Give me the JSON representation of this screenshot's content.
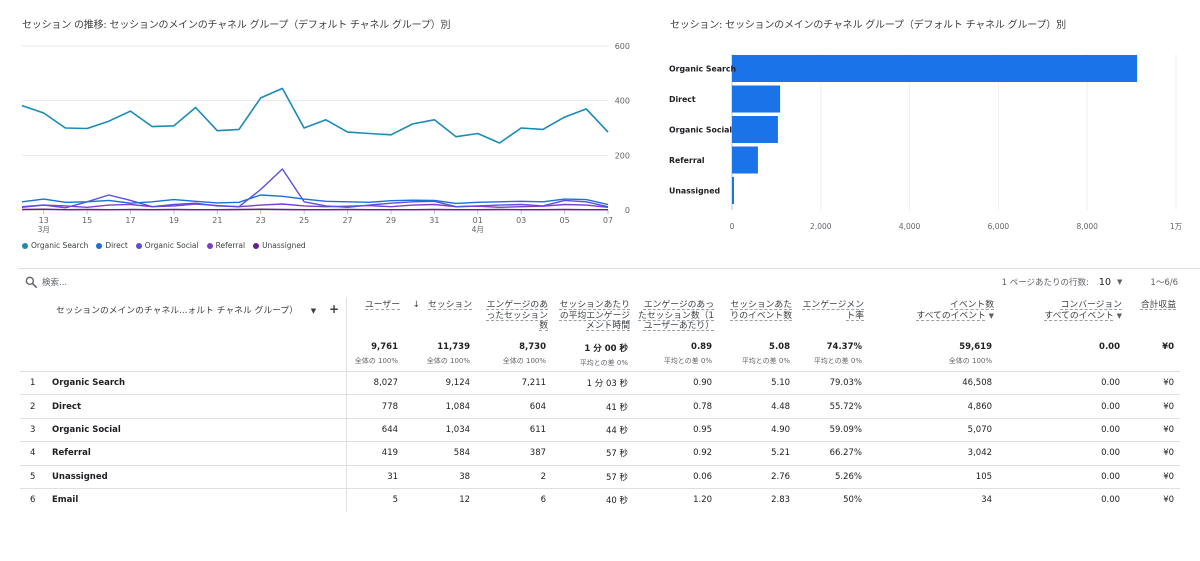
{
  "line_chart": {
    "title": "セッション の推移: セッションのメインのチャネル グループ（デフォルト チャネル グループ）別",
    "y_ticks": [
      "600",
      "400",
      "200",
      "0"
    ],
    "x_ticks": [
      {
        "label": "13",
        "sub": "3月"
      },
      {
        "label": "15",
        "sub": ""
      },
      {
        "label": "17",
        "sub": ""
      },
      {
        "label": "19",
        "sub": ""
      },
      {
        "label": "21",
        "sub": ""
      },
      {
        "label": "23",
        "sub": ""
      },
      {
        "label": "25",
        "sub": ""
      },
      {
        "label": "27",
        "sub": ""
      },
      {
        "label": "29",
        "sub": ""
      },
      {
        "label": "31",
        "sub": ""
      },
      {
        "label": "01",
        "sub": "4月"
      },
      {
        "label": "03",
        "sub": ""
      },
      {
        "label": "05",
        "sub": ""
      },
      {
        "label": "07",
        "sub": ""
      }
    ],
    "legend": [
      {
        "label": "Organic Search",
        "color": "#1a8ab8"
      },
      {
        "label": "Direct",
        "color": "#1c6fd8"
      },
      {
        "label": "Organic Social",
        "color": "#5b4fe0"
      },
      {
        "label": "Referral",
        "color": "#7e3fc8"
      },
      {
        "label": "Unassigned",
        "color": "#6a1b9a"
      }
    ]
  },
  "bar_chart": {
    "title": "セッション: セッションのメインのチャネル グループ（デフォルト チャネル グループ）別",
    "x_ticks": [
      "0",
      "2,000",
      "4,000",
      "6,000",
      "8,000",
      "1万"
    ],
    "color": "#1a73e8"
  },
  "chart_data": [
    {
      "type": "line",
      "title": "セッション の推移: セッションのメインのチャネル グループ（デフォルト チャネル グループ）別",
      "x": [
        "3/12",
        "3/13",
        "3/14",
        "3/15",
        "3/16",
        "3/17",
        "3/18",
        "3/19",
        "3/20",
        "3/21",
        "3/22",
        "3/23",
        "3/24",
        "3/25",
        "3/26",
        "3/27",
        "3/28",
        "3/29",
        "3/30",
        "3/31",
        "4/01",
        "4/02",
        "4/03",
        "4/04",
        "4/05",
        "4/06",
        "4/07",
        "4/08"
      ],
      "ylim": [
        0,
        600
      ],
      "series": [
        {
          "name": "Organic Search",
          "values": [
            382,
            355,
            300,
            298,
            325,
            362,
            305,
            308,
            375,
            290,
            295,
            410,
            445,
            300,
            330,
            285,
            280,
            275,
            315,
            330,
            268,
            280,
            245,
            300,
            295,
            340,
            370,
            285
          ]
        },
        {
          "name": "Direct",
          "values": [
            30,
            40,
            28,
            30,
            35,
            25,
            30,
            38,
            32,
            26,
            28,
            55,
            50,
            40,
            32,
            30,
            28,
            34,
            36,
            35,
            24,
            28,
            30,
            32,
            30,
            40,
            38,
            20
          ]
        },
        {
          "name": "Organic Social",
          "values": [
            10,
            18,
            8,
            30,
            55,
            35,
            12,
            20,
            25,
            15,
            12,
            75,
            150,
            30,
            15,
            10,
            18,
            25,
            30,
            32,
            12,
            15,
            18,
            20,
            15,
            35,
            30,
            12
          ]
        },
        {
          "name": "Referral",
          "values": [
            12,
            18,
            15,
            10,
            18,
            20,
            12,
            15,
            22,
            16,
            12,
            18,
            22,
            15,
            12,
            14,
            16,
            12,
            18,
            20,
            12,
            14,
            10,
            12,
            14,
            20,
            18,
            10
          ]
        },
        {
          "name": "Unassigned",
          "values": [
            2,
            3,
            1,
            2,
            1,
            2,
            1,
            2,
            1,
            1,
            2,
            3,
            2,
            1,
            1,
            2,
            1,
            1,
            1,
            2,
            1,
            1,
            2,
            1,
            1,
            2,
            1,
            1
          ]
        }
      ]
    },
    {
      "type": "bar",
      "title": "セッション: セッションのメインのチャネル グループ（デフォルト チャネル グループ）別",
      "categories": [
        "Organic Search",
        "Direct",
        "Organic Social",
        "Referral",
        "Unassigned"
      ],
      "values": [
        9124,
        1084,
        1034,
        584,
        38
      ],
      "xlim": [
        0,
        10000
      ]
    }
  ],
  "search": {
    "placeholder": "検索..."
  },
  "pagination": {
    "rows_label": "1 ページあたりの行数:",
    "rows_value": "10",
    "range": "1～6/6"
  },
  "table": {
    "dimension_header": "セッションのメインのチャネル...ォルト チャネル グループ）",
    "columns": [
      {
        "label": "ユーザー",
        "sub": ""
      },
      {
        "label": "セッション",
        "sub": ""
      },
      {
        "label": "エンゲージのあったセッション数",
        "sub": ""
      },
      {
        "label": "セッションあたりの平均エンゲージメント時間",
        "sub": ""
      },
      {
        "label": "エンゲージのあったセッション数（1 ユーザーあたり）",
        "sub": ""
      },
      {
        "label": "セッションあたりのイベント数",
        "sub": ""
      },
      {
        "label": "エンゲージメント率",
        "sub": ""
      },
      {
        "label": "イベント数",
        "sub": "すべてのイベント"
      },
      {
        "label": "コンバージョン",
        "sub": "すべてのイベント"
      },
      {
        "label": "合計収益",
        "sub": ""
      }
    ],
    "totals": [
      {
        "value": "9,761",
        "sub": "全体の 100%"
      },
      {
        "value": "11,739",
        "sub": "全体の 100%"
      },
      {
        "value": "8,730",
        "sub": "全体の 100%"
      },
      {
        "value": "1 分 00 秒",
        "sub": "平均との差 0%"
      },
      {
        "value": "0.89",
        "sub": "平均との差 0%"
      },
      {
        "value": "5.08",
        "sub": "平均との差 0%"
      },
      {
        "value": "74.37%",
        "sub": "平均との差 0%"
      },
      {
        "value": "59,619",
        "sub": "全体の 100%"
      },
      {
        "value": "0.00",
        "sub": ""
      },
      {
        "value": "¥0",
        "sub": ""
      }
    ],
    "rows": [
      {
        "idx": "1",
        "name": "Organic Search",
        "cells": [
          "8,027",
          "9,124",
          "7,211",
          "1 分 03 秒",
          "0.90",
          "5.10",
          "79.03%",
          "46,508",
          "0.00",
          "¥0"
        ]
      },
      {
        "idx": "2",
        "name": "Direct",
        "cells": [
          "778",
          "1,084",
          "604",
          "41 秒",
          "0.78",
          "4.48",
          "55.72%",
          "4,860",
          "0.00",
          "¥0"
        ]
      },
      {
        "idx": "3",
        "name": "Organic Social",
        "cells": [
          "644",
          "1,034",
          "611",
          "44 秒",
          "0.95",
          "4.90",
          "59.09%",
          "5,070",
          "0.00",
          "¥0"
        ]
      },
      {
        "idx": "4",
        "name": "Referral",
        "cells": [
          "419",
          "584",
          "387",
          "57 秒",
          "0.92",
          "5.21",
          "66.27%",
          "3,042",
          "0.00",
          "¥0"
        ]
      },
      {
        "idx": "5",
        "name": "Unassigned",
        "cells": [
          "31",
          "38",
          "2",
          "57 秒",
          "0.06",
          "2.76",
          "5.26%",
          "105",
          "0.00",
          "¥0"
        ]
      },
      {
        "idx": "6",
        "name": "Email",
        "cells": [
          "5",
          "12",
          "6",
          "40 秒",
          "1.20",
          "2.83",
          "50%",
          "34",
          "0.00",
          "¥0"
        ]
      }
    ]
  }
}
